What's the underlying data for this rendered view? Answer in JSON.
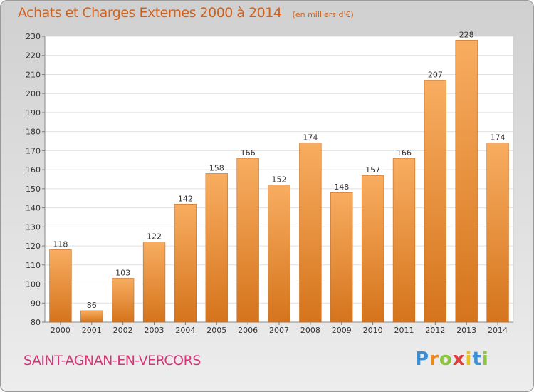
{
  "header": {
    "title": "Achats et Charges Externes 2000 à 2014",
    "unit": "(en milliers d'€)"
  },
  "footer": {
    "commune": "SAINT-AGNAN-EN-VERCORS",
    "logo": [
      "P",
      "r",
      "o",
      "x",
      "i",
      "t",
      "i"
    ]
  },
  "colors": {
    "bar_light": "#f8ad60",
    "bar_dark": "#d5741c",
    "title": "#d2611a",
    "commune": "#d6357a"
  },
  "chart_data": {
    "type": "bar",
    "title": "Achats et Charges Externes 2000 à 2014",
    "unit": "(en milliers d'€)",
    "categories": [
      "2000",
      "2001",
      "2002",
      "2003",
      "2004",
      "2005",
      "2006",
      "2007",
      "2008",
      "2009",
      "2010",
      "2011",
      "2012",
      "2013",
      "2014"
    ],
    "values": [
      118,
      86,
      103,
      122,
      142,
      158,
      166,
      152,
      174,
      148,
      157,
      166,
      207,
      228,
      174
    ],
    "ylim": [
      80,
      230
    ],
    "yticks": [
      80,
      90,
      100,
      110,
      120,
      130,
      140,
      150,
      160,
      170,
      180,
      190,
      200,
      210,
      220,
      230
    ],
    "grid": true,
    "legend": "none"
  }
}
